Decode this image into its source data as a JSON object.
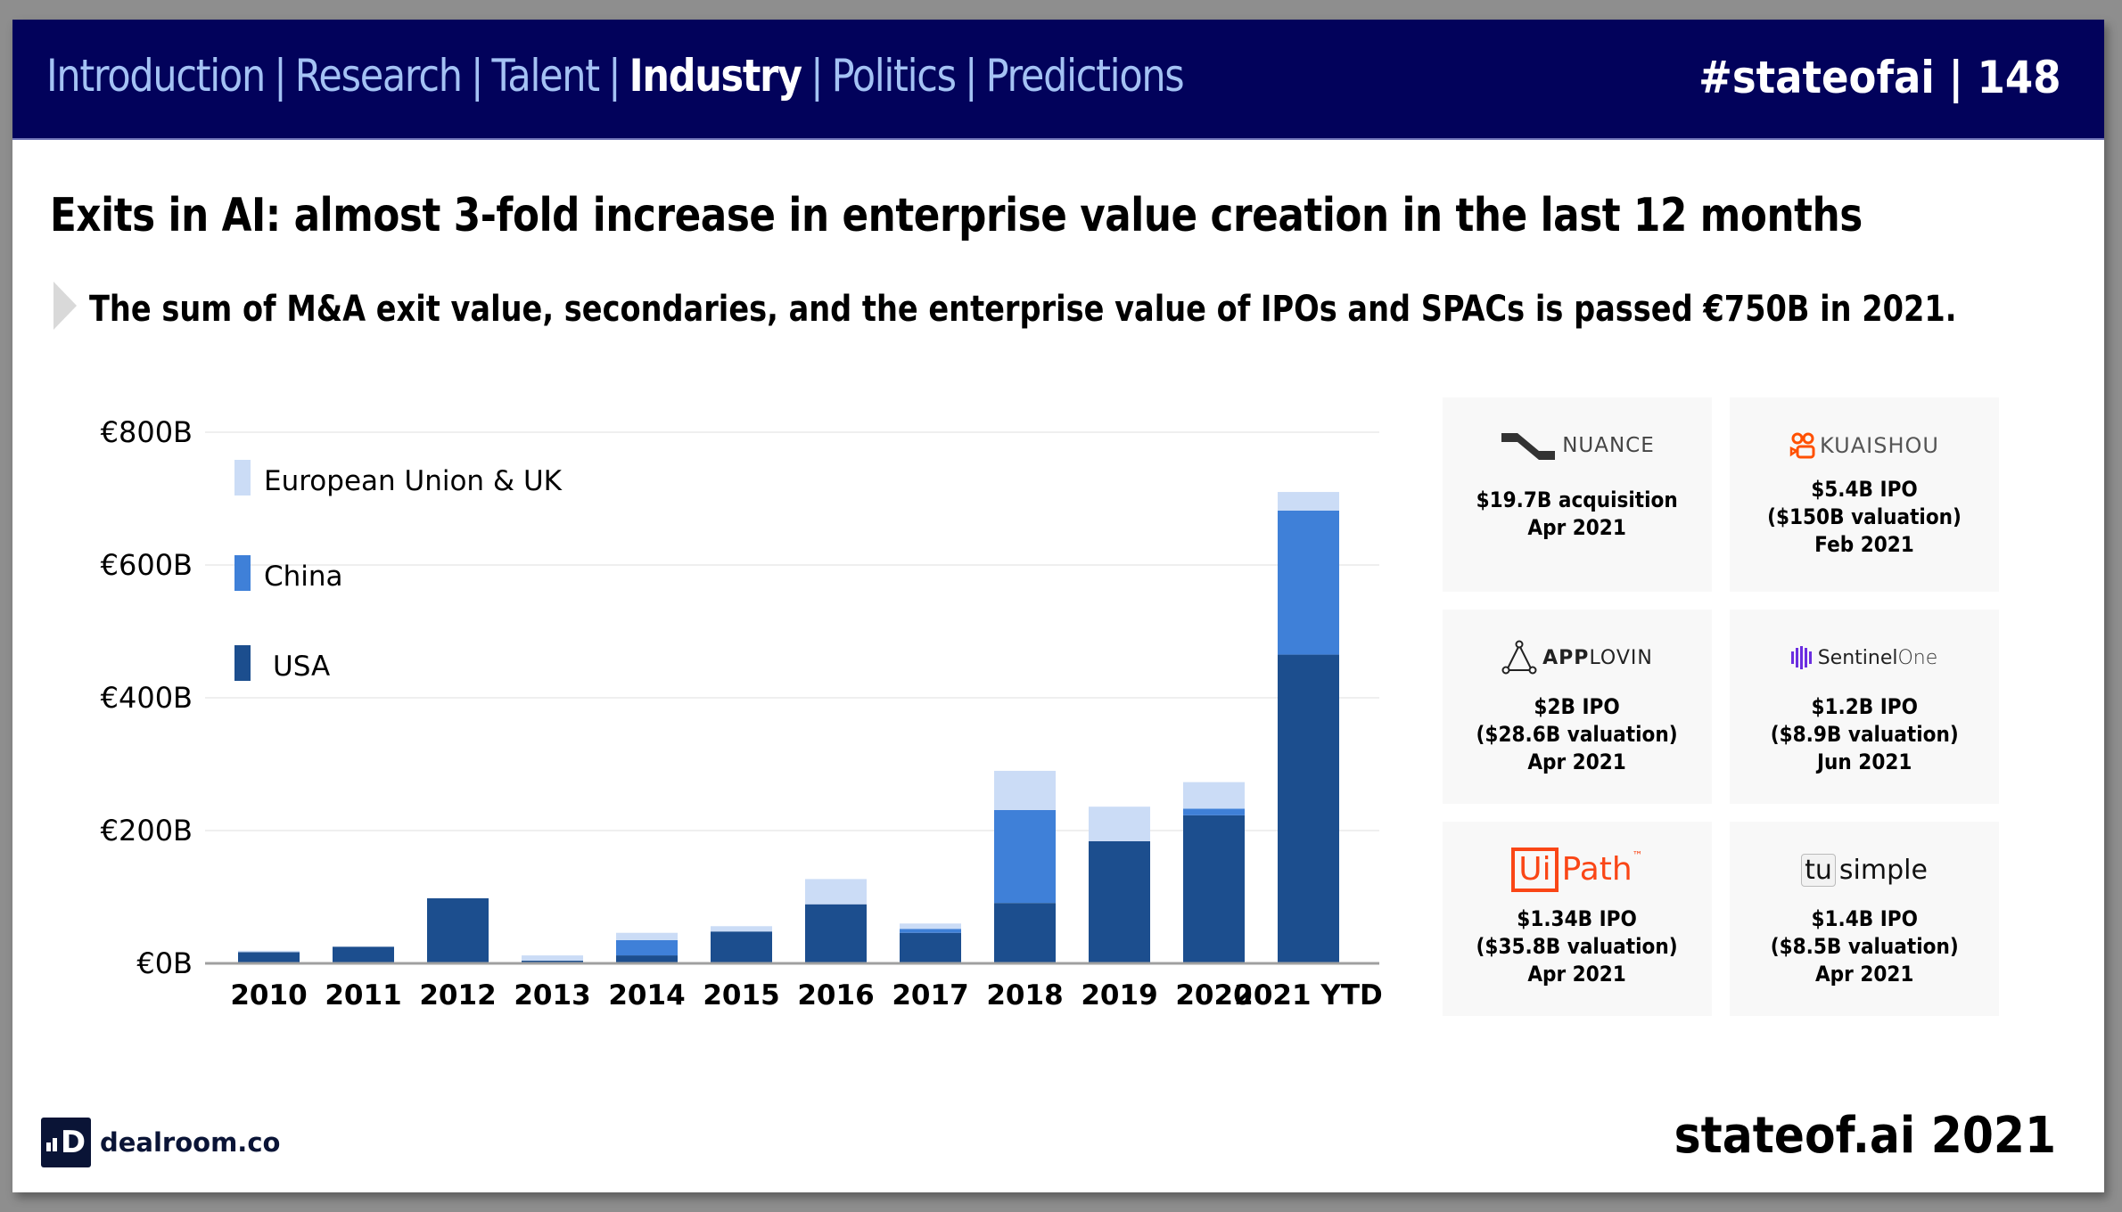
{
  "header": {
    "nav": [
      {
        "label": "Introduction",
        "active": false
      },
      {
        "label": "Research",
        "active": false
      },
      {
        "label": "Talent",
        "active": false
      },
      {
        "label": "Industry",
        "active": true
      },
      {
        "label": "Politics",
        "active": false
      },
      {
        "label": "Predictions",
        "active": false
      }
    ],
    "separator": "|",
    "page_tag": "#stateofai | 148"
  },
  "title": "Exits in AI: almost 3-fold increase in enterprise value creation in the last 12 months",
  "subtitle": "The sum of M&A exit value, secondaries, and the enterprise value of IPOs and SPACs is passed €750B in 2021.",
  "chart_data": {
    "type": "bar",
    "stacked": true,
    "title": "",
    "xlabel": "",
    "ylabel": "",
    "categories": [
      "2010",
      "2011",
      "2012",
      "2013",
      "2014",
      "2015",
      "2016",
      "2017",
      "2018",
      "2019",
      "2020",
      "2021 YTD"
    ],
    "series": [
      {
        "name": "USA",
        "color": "#1c4e8e",
        "values": [
          17,
          25,
          98,
          4,
          12,
          48,
          89,
          46,
          91,
          184,
          223,
          465
        ]
      },
      {
        "name": "China",
        "color": "#3f80d8",
        "values": [
          0,
          0,
          0,
          0,
          23,
          0,
          0,
          6,
          140,
          0,
          10,
          217
        ]
      },
      {
        "name": "European Union & UK",
        "color": "#cbdcf6",
        "values": [
          2,
          0,
          0,
          8,
          11,
          8,
          38,
          8,
          59,
          52,
          40,
          28
        ]
      }
    ],
    "ylim": [
      0,
      800
    ],
    "yticks": [
      0,
      200,
      400,
      600,
      800
    ],
    "ytick_labels": [
      "€0B",
      "€200B",
      "€400B",
      "€600B",
      "€800B"
    ],
    "grid": true,
    "legend": {
      "placement": "top-left",
      "order": [
        "European Union & UK",
        "China",
        "USA"
      ]
    }
  },
  "cards": [
    {
      "company": "NUANCE",
      "logo_icon": "nuance-logo-icon",
      "lines": [
        "$19.7B acquisition",
        "Apr 2021"
      ]
    },
    {
      "company": "KUAISHOU",
      "logo_icon": "kuaishou-camera-icon",
      "lines": [
        "$5.4B IPO",
        "($150B valuation)",
        "Feb 2021"
      ]
    },
    {
      "company": "APPLOVIN",
      "logo_icon": "applovin-triangle-icon",
      "lines": [
        "$2B IPO",
        "($28.6B valuation)",
        "Apr 2021"
      ]
    },
    {
      "company": "SentinelOne",
      "logo_icon": "sentinelone-bars-icon",
      "lines": [
        "$1.2B IPO",
        "($8.9B valuation)",
        "Jun 2021"
      ]
    },
    {
      "company": "UiPath",
      "logo_icon": "uipath-logo-icon",
      "lines": [
        "$1.34B IPO",
        "($35.8B valuation)",
        "Apr 2021"
      ]
    },
    {
      "company": "tusimple",
      "logo_icon": "tusimple-logo-icon",
      "lines": [
        "$1.4B IPO",
        "($8.5B valuation)",
        "Apr 2021"
      ]
    }
  ],
  "logos": {
    "nuance": "NUANCE",
    "kuaishou": "KUAISHOU",
    "applovin_bold": "APP",
    "applovin_light": "LOVIN",
    "sentinel": "Sentinel",
    "sentinel_one": "One",
    "uipath_ui": "Ui",
    "uipath_path": "Path",
    "uipath_tm": "™",
    "tusimple_tu": "tu",
    "tusimple_simple": "simple"
  },
  "footer": {
    "source_logo_mark": "D",
    "source_name": "dealroom.co",
    "brand": "stateof.ai 2021"
  },
  "colors": {
    "header_bg": "#02025b",
    "nav_inactive": "#a4c2f4",
    "nav_active": "#ffffff",
    "uipath_orange": "#fa4616",
    "kuaishou_orange": "#ff5000",
    "sentinel_purple": "#6b2ee0"
  }
}
